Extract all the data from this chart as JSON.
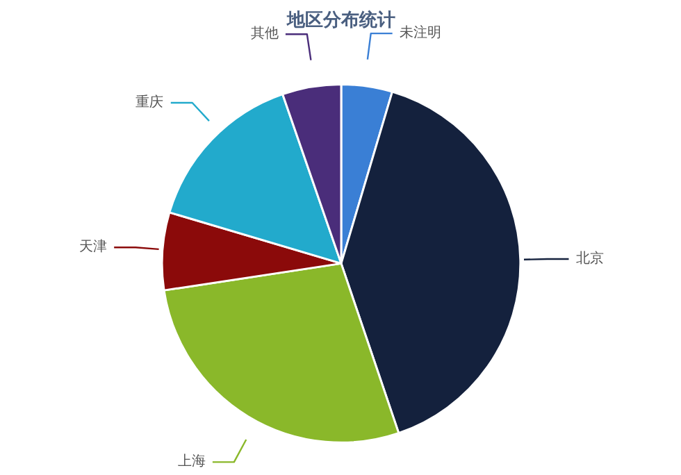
{
  "chart_data": {
    "type": "pie",
    "title": "地区分布统计",
    "categories": [
      "未注明",
      "北京",
      "上海",
      "天津",
      "重庆",
      "其他"
    ],
    "values": [
      4.6,
      40.2,
      27.8,
      7.0,
      15.1,
      5.3
    ],
    "colors": [
      "#3a7fd5",
      "#14213d",
      "#8ab82a",
      "#8b0a0a",
      "#22aacc",
      "#4a2d7a"
    ]
  }
}
